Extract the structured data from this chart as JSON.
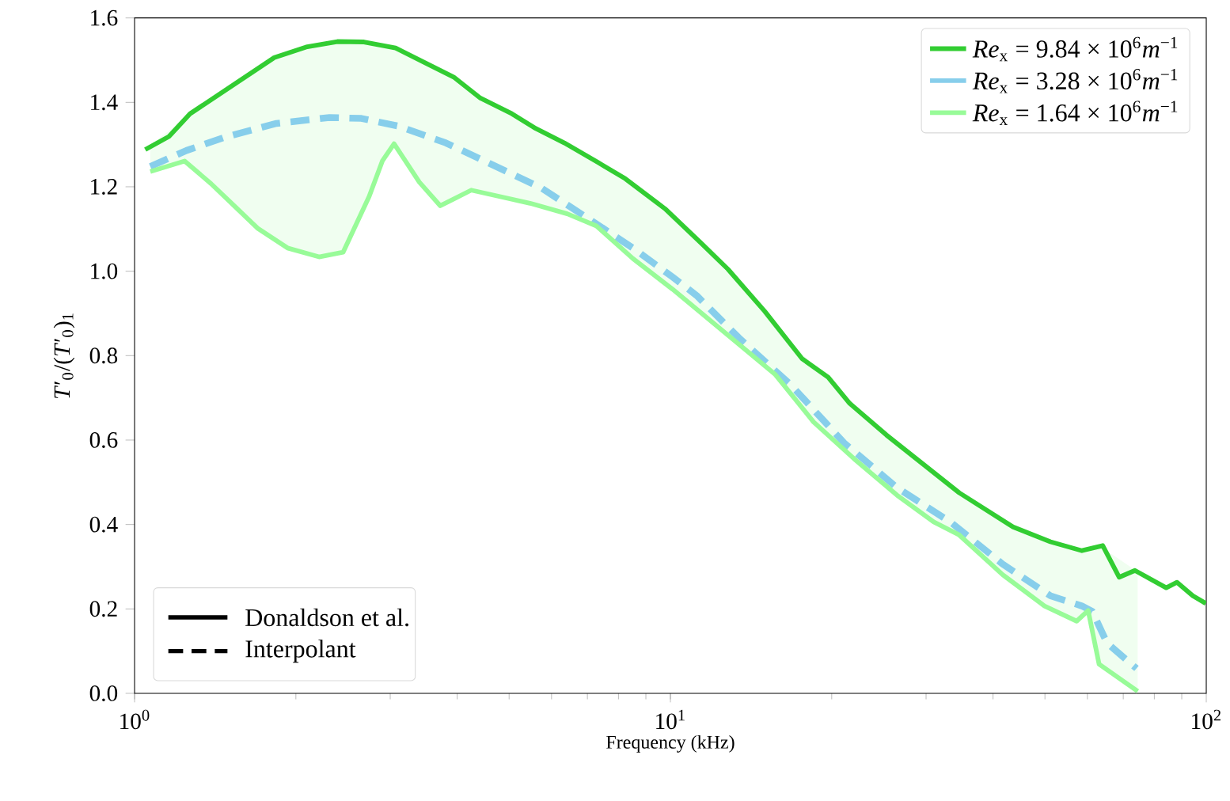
{
  "chart_data": {
    "type": "line",
    "xlabel": "Frequency (kHz)",
    "ylabel": "*T*′$_{0}$/(*T*′$_{0}$)$_{1}$",
    "log": "x",
    "xlim": [
      1,
      100
    ],
    "xticks": [
      {
        "value": 1,
        "label": "10$^{0}$"
      },
      {
        "value": 10,
        "label": "10$^{1}$"
      },
      {
        "value": 100,
        "label": "10$^{2}$"
      }
    ],
    "ylim": [
      0,
      1.6
    ],
    "yticks": [
      {
        "value": 0,
        "label": "0.0"
      },
      0.2,
      0.4,
      0.6,
      0.8,
      {
        "value": 1,
        "label": "1.0"
      },
      1.2,
      1.4,
      1.6
    ],
    "legend": "top right",
    "grid": false,
    "series": [
      {
        "name": "*Re*$_{x}$ = 9.84 × 10$^{6}$*m*$^{−1}$",
        "color": "#32cd32",
        "line_style": "solid",
        "x": [
          1.047,
          1.159,
          1.269,
          1.823,
          2.09,
          2.39,
          2.68,
          3.07,
          3.48,
          3.94,
          4.42,
          5.06,
          5.61,
          6.34,
          7.34,
          8.24,
          9.77,
          11.4,
          12.8,
          15.0,
          17.6,
          19.7,
          21.6,
          25.3,
          34.6,
          43.6,
          51.2,
          58.6,
          64.1,
          68.8,
          73.6,
          84.2,
          88.2,
          94.4,
          99.8
        ],
        "values": [
          1.288,
          1.319,
          1.373,
          1.506,
          1.531,
          1.544,
          1.543,
          1.529,
          1.494,
          1.46,
          1.41,
          1.373,
          1.338,
          1.304,
          1.257,
          1.219,
          1.148,
          1.067,
          1.005,
          0.905,
          0.793,
          0.749,
          0.687,
          0.612,
          0.475,
          0.394,
          0.359,
          0.338,
          0.35,
          0.275,
          0.291,
          0.25,
          0.263,
          0.231,
          0.213
        ]
      },
      {
        "name": "*Re*$_{x}$ = 3.28 × 10$^{6}$*m*$^{−1}$",
        "color": "#87ceeb",
        "line_style": "dashed",
        "x": [
          1.07,
          1.25,
          1.47,
          1.84,
          2.31,
          2.65,
          3.1,
          3.81,
          4.57,
          5.73,
          7.18,
          8.51,
          10.1,
          11.2,
          13.4,
          16.8,
          21.1,
          26.5,
          33.3,
          41.7,
          51.2,
          58.6,
          61.3,
          65.3,
          74.1
        ],
        "values": [
          1.248,
          1.286,
          1.317,
          1.35,
          1.364,
          1.362,
          1.344,
          1.304,
          1.257,
          1.198,
          1.117,
          1.055,
          0.986,
          0.942,
          0.843,
          0.73,
          0.593,
          0.487,
          0.406,
          0.306,
          0.231,
          0.207,
          0.194,
          0.119,
          0.059
        ]
      },
      {
        "name": "*Re*$_{x}$ = 1.64 × 10$^{6}$*m*$^{−1}$",
        "color": "#98fb98",
        "line_style": "solid",
        "x": [
          1.07,
          1.24,
          1.39,
          1.7,
          1.93,
          2.21,
          2.45,
          2.74,
          2.9,
          3.05,
          3.4,
          3.72,
          4.25,
          5.47,
          6.42,
          7.28,
          8.51,
          10.1,
          15.7,
          18.5,
          22.0,
          26.5,
          31.0,
          34.6,
          41.7,
          49.9,
          57.3,
          60.2,
          63.1,
          74.5
        ],
        "values": [
          1.236,
          1.261,
          1.207,
          1.101,
          1.055,
          1.034,
          1.045,
          1.177,
          1.261,
          1.302,
          1.211,
          1.155,
          1.192,
          1.161,
          1.136,
          1.107,
          1.03,
          0.957,
          0.755,
          0.643,
          0.556,
          0.469,
          0.406,
          0.375,
          0.281,
          0.207,
          0.171,
          0.196,
          0.069,
          0.005
        ],
        "lower": [
          1.236,
          1.261,
          1.207,
          1.101,
          1.055,
          1.034,
          1.045,
          1.177,
          1.261,
          1.302,
          1.211,
          1.155,
          1.192,
          1.161,
          1.136,
          1.107,
          1.03,
          0.957,
          0.755,
          0.643,
          0.556,
          0.469,
          0.406,
          0.375,
          0.281,
          0.207,
          0.171,
          0.196,
          0.069,
          0.005
        ],
        "upper": [
          1.3,
          1.36,
          1.41,
          1.48,
          1.515,
          1.537,
          1.544,
          1.542,
          1.536,
          1.53,
          1.5,
          1.476,
          1.428,
          1.346,
          1.3,
          1.26,
          1.204,
          1.135,
          0.875,
          0.775,
          0.68,
          0.59,
          0.52,
          0.475,
          0.405,
          0.365,
          0.34,
          0.342,
          0.35,
          0.288
        ]
      }
    ],
    "annotations": [
      "Donaldson et al.",
      "Interpolant"
    ]
  }
}
